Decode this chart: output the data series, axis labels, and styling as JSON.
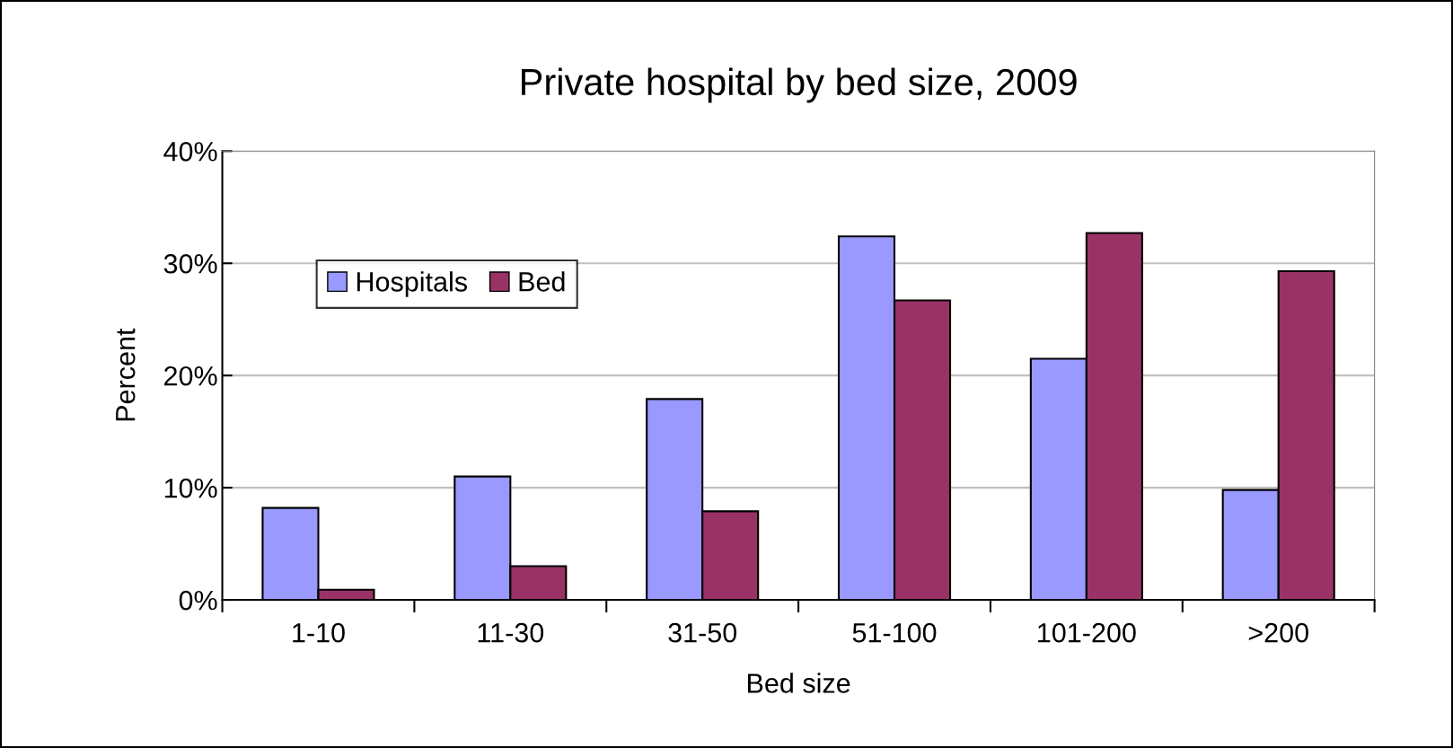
{
  "chart_data": {
    "type": "bar",
    "title": "Private hospital by bed size, 2009",
    "xlabel": "Bed size",
    "ylabel": "Percent",
    "categories": [
      "1-10",
      "11-30",
      "31-50",
      "51-100",
      "101-200",
      ">200"
    ],
    "series": [
      {
        "name": "Hospitals",
        "color": "#9999ff",
        "values": [
          8.2,
          11.0,
          17.9,
          32.4,
          21.5,
          9.8
        ]
      },
      {
        "name": "Bed",
        "color": "#993366",
        "values": [
          0.9,
          3.0,
          7.9,
          26.7,
          32.7,
          29.3
        ]
      }
    ],
    "ylim": [
      0,
      40
    ],
    "yticks": [
      {
        "value": 0,
        "label": "0%"
      },
      {
        "value": 10,
        "label": "10%"
      },
      {
        "value": 20,
        "label": "20%"
      },
      {
        "value": 30,
        "label": "30%"
      },
      {
        "value": 40,
        "label": "40%"
      }
    ],
    "grid": "y",
    "legend": "left"
  }
}
